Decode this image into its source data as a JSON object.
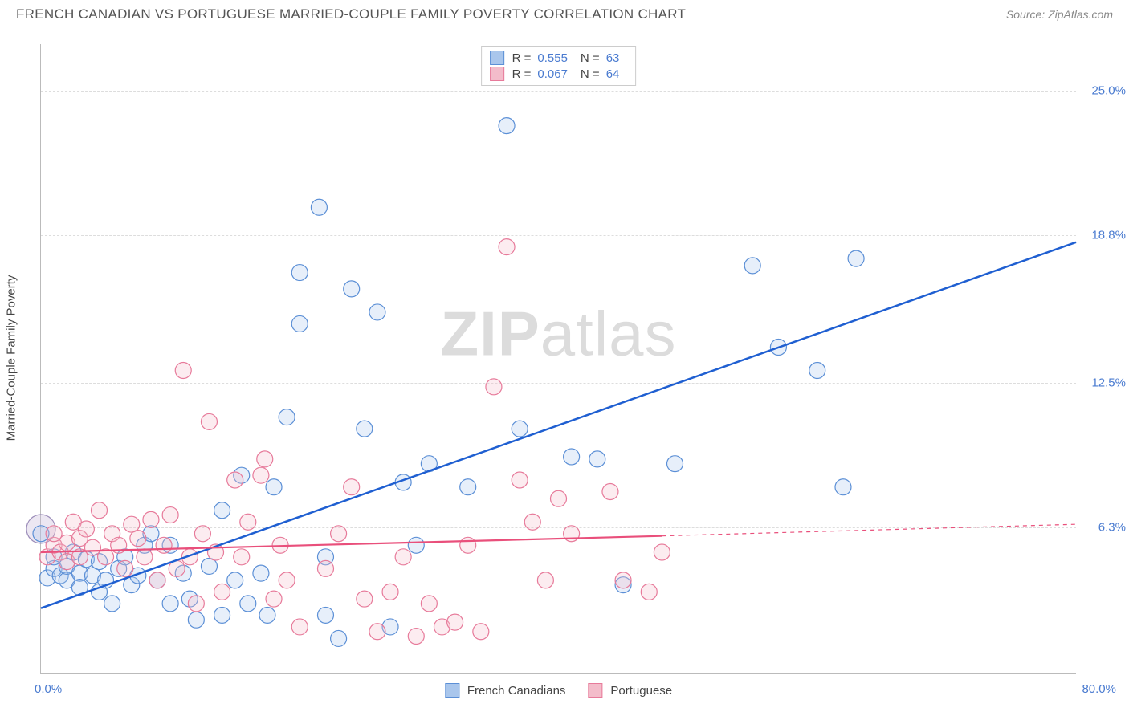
{
  "header": {
    "title": "FRENCH CANADIAN VS PORTUGUESE MARRIED-COUPLE FAMILY POVERTY CORRELATION CHART",
    "source": "Source: ZipAtlas.com"
  },
  "chart": {
    "type": "scatter",
    "ylabel": "Married-Couple Family Poverty",
    "watermark": "ZIPatlas",
    "xlim": [
      0,
      80
    ],
    "ylim": [
      0,
      27
    ],
    "xtick_labels": [
      {
        "value": 0,
        "label": "0.0%"
      },
      {
        "value": 80,
        "label": "80.0%"
      }
    ],
    "ytick_labels": [
      {
        "value": 6.3,
        "label": "6.3%"
      },
      {
        "value": 12.5,
        "label": "12.5%"
      },
      {
        "value": 18.8,
        "label": "18.8%"
      },
      {
        "value": 25.0,
        "label": "25.0%"
      }
    ],
    "grid_color": "#dddddd",
    "axis_color": "#bbbbbb",
    "background_color": "#ffffff",
    "series": [
      {
        "name": "French Canadians",
        "fill": "#a9c6ec",
        "stroke": "#5b8fd6",
        "marker_radius": 10,
        "R": "0.555",
        "N": "63",
        "trend": {
          "x1": 0,
          "y1": 2.8,
          "x2": 80,
          "y2": 18.5,
          "color": "#1f5fd1",
          "width": 2.5,
          "dash_after": 80
        },
        "points": [
          [
            0,
            6.0
          ],
          [
            0.5,
            4.1
          ],
          [
            1,
            4.5
          ],
          [
            1,
            5.0
          ],
          [
            1.5,
            4.2
          ],
          [
            2,
            4.0
          ],
          [
            2,
            4.6
          ],
          [
            2.5,
            5.2
          ],
          [
            3,
            4.3
          ],
          [
            3,
            3.7
          ],
          [
            3.5,
            4.9
          ],
          [
            4,
            4.2
          ],
          [
            4.5,
            3.5
          ],
          [
            4.5,
            4.8
          ],
          [
            5,
            4.0
          ],
          [
            5.5,
            3.0
          ],
          [
            6,
            4.5
          ],
          [
            6.5,
            5.0
          ],
          [
            7,
            3.8
          ],
          [
            7.5,
            4.2
          ],
          [
            8,
            5.5
          ],
          [
            8.5,
            6.0
          ],
          [
            9,
            4.0
          ],
          [
            10,
            3.0
          ],
          [
            10,
            5.5
          ],
          [
            11,
            4.3
          ],
          [
            11.5,
            3.2
          ],
          [
            12,
            2.3
          ],
          [
            13,
            4.6
          ],
          [
            14,
            2.5
          ],
          [
            14,
            7.0
          ],
          [
            15,
            4.0
          ],
          [
            15.5,
            8.5
          ],
          [
            16,
            3.0
          ],
          [
            17,
            4.3
          ],
          [
            17.5,
            2.5
          ],
          [
            18,
            8.0
          ],
          [
            19,
            11.0
          ],
          [
            20,
            15.0
          ],
          [
            20,
            17.2
          ],
          [
            21.5,
            20.0
          ],
          [
            22,
            2.5
          ],
          [
            22,
            5.0
          ],
          [
            23,
            1.5
          ],
          [
            24,
            16.5
          ],
          [
            25,
            10.5
          ],
          [
            26,
            15.5
          ],
          [
            27,
            2.0
          ],
          [
            28,
            8.2
          ],
          [
            29,
            5.5
          ],
          [
            30,
            9.0
          ],
          [
            33,
            8.0
          ],
          [
            36,
            23.5
          ],
          [
            37,
            10.5
          ],
          [
            41,
            9.3
          ],
          [
            43,
            9.2
          ],
          [
            45,
            3.8
          ],
          [
            49,
            9.0
          ],
          [
            55,
            17.5
          ],
          [
            57,
            14.0
          ],
          [
            60,
            13.0
          ],
          [
            62,
            8.0
          ],
          [
            63,
            17.8
          ]
        ]
      },
      {
        "name": "Portuguese",
        "fill": "#f3bcca",
        "stroke": "#e77a9a",
        "marker_radius": 10,
        "R": "0.067",
        "N": "64",
        "trend": {
          "x1": 0,
          "y1": 5.2,
          "x2": 48,
          "y2": 5.9,
          "color": "#e94f7b",
          "width": 2.2,
          "dash_after": 48,
          "dash_x2": 80,
          "dash_y2": 6.4
        },
        "points": [
          [
            0.5,
            5.0
          ],
          [
            1,
            5.5
          ],
          [
            1,
            6.0
          ],
          [
            1.5,
            5.2
          ],
          [
            2,
            4.8
          ],
          [
            2,
            5.6
          ],
          [
            2.5,
            6.5
          ],
          [
            3,
            5.0
          ],
          [
            3,
            5.8
          ],
          [
            3.5,
            6.2
          ],
          [
            4,
            5.4
          ],
          [
            4.5,
            7.0
          ],
          [
            5,
            5.0
          ],
          [
            5.5,
            6.0
          ],
          [
            6,
            5.5
          ],
          [
            6.5,
            4.5
          ],
          [
            7,
            6.4
          ],
          [
            7.5,
            5.8
          ],
          [
            8,
            5.0
          ],
          [
            8.5,
            6.6
          ],
          [
            9,
            4.0
          ],
          [
            9.5,
            5.5
          ],
          [
            10,
            6.8
          ],
          [
            10.5,
            4.5
          ],
          [
            11,
            13.0
          ],
          [
            11.5,
            5.0
          ],
          [
            12,
            3.0
          ],
          [
            12.5,
            6.0
          ],
          [
            13,
            10.8
          ],
          [
            13.5,
            5.2
          ],
          [
            14,
            3.5
          ],
          [
            15,
            8.3
          ],
          [
            15.5,
            5.0
          ],
          [
            16,
            6.5
          ],
          [
            17,
            8.5
          ],
          [
            17.3,
            9.2
          ],
          [
            18,
            3.2
          ],
          [
            18.5,
            5.5
          ],
          [
            19,
            4.0
          ],
          [
            20,
            2.0
          ],
          [
            22,
            4.5
          ],
          [
            23,
            6.0
          ],
          [
            24,
            8.0
          ],
          [
            25,
            3.2
          ],
          [
            26,
            1.8
          ],
          [
            27,
            3.5
          ],
          [
            28,
            5.0
          ],
          [
            29,
            1.6
          ],
          [
            30,
            3.0
          ],
          [
            31,
            2.0
          ],
          [
            32,
            2.2
          ],
          [
            33,
            5.5
          ],
          [
            34,
            1.8
          ],
          [
            35,
            12.3
          ],
          [
            36,
            18.3
          ],
          [
            37,
            8.3
          ],
          [
            38,
            6.5
          ],
          [
            39,
            4.0
          ],
          [
            40,
            7.5
          ],
          [
            41,
            6.0
          ],
          [
            44,
            7.8
          ],
          [
            45,
            4.0
          ],
          [
            47,
            3.5
          ],
          [
            48,
            5.2
          ]
        ]
      }
    ],
    "legend_bottom": [
      {
        "label": "French Canadians",
        "fill": "#a9c6ec",
        "stroke": "#5b8fd6"
      },
      {
        "label": "Portuguese",
        "fill": "#f3bcca",
        "stroke": "#e77a9a"
      }
    ]
  }
}
